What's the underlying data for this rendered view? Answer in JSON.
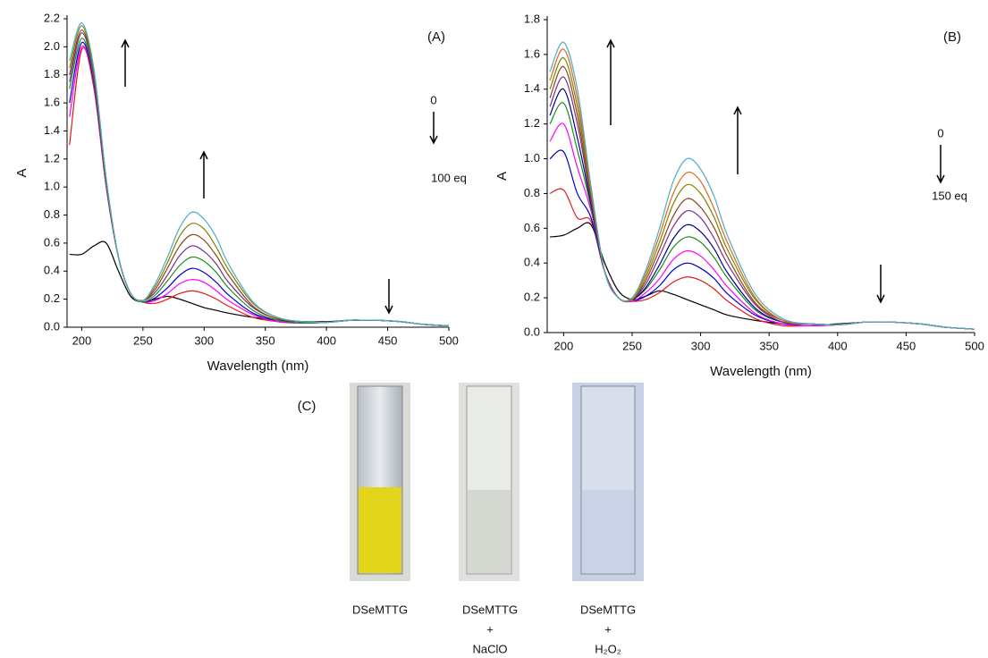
{
  "chart_data": [
    {
      "type": "line",
      "panel_label": "(A)",
      "xlabel": "Wavelength (nm)",
      "ylabel": "A",
      "annotation_start": "0",
      "annotation_end": "100 eq",
      "x": [
        190,
        200,
        210,
        220,
        230,
        240,
        250,
        260,
        270,
        280,
        290,
        300,
        310,
        320,
        340,
        360,
        380,
        400,
        420,
        430,
        440,
        460,
        480,
        500
      ],
      "xlim": [
        188,
        500
      ],
      "ylim": [
        0,
        2.2
      ],
      "xticks": [
        200,
        250,
        300,
        350,
        400,
        450,
        500
      ],
      "yticks": [
        {
          "value": 0,
          "label": "0.0"
        },
        0.2,
        0.4,
        0.6,
        0.8,
        {
          "value": 1,
          "label": "1.0"
        },
        1.2,
        1.4,
        1.6,
        1.8,
        {
          "value": 2,
          "label": "2.0"
        },
        2.2
      ],
      "series": [
        {
          "color": "#000000",
          "values": [
            0.52,
            0.52,
            0.58,
            0.6,
            0.4,
            0.22,
            0.18,
            0.2,
            0.22,
            0.2,
            0.17,
            0.14,
            0.12,
            0.1,
            0.07,
            0.05,
            0.04,
            0.04,
            0.05,
            0.05,
            0.05,
            0.04,
            0.02,
            0.01
          ]
        },
        {
          "color": "#e41a1c",
          "values": [
            1.3,
            1.98,
            1.7,
            1.0,
            0.5,
            0.24,
            0.18,
            0.17,
            0.2,
            0.24,
            0.26,
            0.24,
            0.2,
            0.15,
            0.07,
            0.04,
            0.03,
            0.035,
            0.05,
            0.05,
            0.05,
            0.04,
            0.02,
            0.01
          ]
        },
        {
          "color": "#ff00ff",
          "values": [
            1.5,
            2.0,
            1.72,
            1.0,
            0.5,
            0.24,
            0.18,
            0.19,
            0.24,
            0.31,
            0.34,
            0.32,
            0.26,
            0.19,
            0.09,
            0.04,
            0.03,
            0.035,
            0.05,
            0.05,
            0.05,
            0.04,
            0.02,
            0.01
          ]
        },
        {
          "color": "#0000cc",
          "values": [
            1.6,
            2.03,
            1.74,
            1.02,
            0.5,
            0.24,
            0.18,
            0.21,
            0.28,
            0.37,
            0.42,
            0.39,
            0.32,
            0.23,
            0.1,
            0.05,
            0.03,
            0.035,
            0.05,
            0.05,
            0.05,
            0.04,
            0.02,
            0.01
          ]
        },
        {
          "color": "#1e8c1e",
          "values": [
            1.7,
            2.06,
            1.76,
            1.02,
            0.5,
            0.24,
            0.18,
            0.23,
            0.33,
            0.44,
            0.5,
            0.47,
            0.39,
            0.28,
            0.12,
            0.05,
            0.03,
            0.035,
            0.05,
            0.05,
            0.05,
            0.04,
            0.02,
            0.01
          ]
        },
        {
          "color": "#7b2d8b",
          "values": [
            1.75,
            2.1,
            1.78,
            1.04,
            0.5,
            0.24,
            0.19,
            0.25,
            0.37,
            0.51,
            0.58,
            0.54,
            0.45,
            0.32,
            0.14,
            0.06,
            0.04,
            0.035,
            0.05,
            0.05,
            0.05,
            0.04,
            0.02,
            0.01
          ]
        },
        {
          "color": "#8b4513",
          "values": [
            1.8,
            2.12,
            1.8,
            1.04,
            0.5,
            0.24,
            0.19,
            0.27,
            0.42,
            0.58,
            0.66,
            0.62,
            0.51,
            0.37,
            0.15,
            0.06,
            0.04,
            0.035,
            0.05,
            0.05,
            0.05,
            0.04,
            0.02,
            0.01
          ]
        },
        {
          "color": "#808000",
          "values": [
            1.85,
            2.15,
            1.82,
            1.06,
            0.5,
            0.24,
            0.19,
            0.29,
            0.46,
            0.65,
            0.74,
            0.7,
            0.57,
            0.41,
            0.17,
            0.07,
            0.04,
            0.035,
            0.05,
            0.05,
            0.05,
            0.04,
            0.02,
            0.01
          ]
        },
        {
          "color": "#4bacc6",
          "values": [
            1.9,
            2.17,
            1.84,
            1.06,
            0.5,
            0.24,
            0.19,
            0.31,
            0.5,
            0.71,
            0.82,
            0.77,
            0.64,
            0.45,
            0.18,
            0.07,
            0.04,
            0.035,
            0.05,
            0.05,
            0.05,
            0.04,
            0.02,
            0.01
          ]
        }
      ]
    },
    {
      "type": "line",
      "panel_label": "(B)",
      "xlabel": "Wavelength (nm)",
      "ylabel": "A",
      "annotation_start": "0",
      "annotation_end": "150 eq",
      "x": [
        190,
        200,
        210,
        220,
        230,
        240,
        250,
        260,
        270,
        280,
        290,
        300,
        310,
        320,
        340,
        360,
        380,
        400,
        420,
        430,
        440,
        460,
        480,
        500
      ],
      "xlim": [
        188,
        500
      ],
      "ylim": [
        0,
        1.8
      ],
      "xticks": [
        200,
        250,
        300,
        350,
        400,
        450,
        500
      ],
      "yticks": [
        {
          "value": 0,
          "label": "0.0"
        },
        0.2,
        0.4,
        0.6,
        0.8,
        {
          "value": 1,
          "label": "1.0"
        },
        1.2,
        1.4,
        1.6,
        1.8
      ],
      "series": [
        {
          "color": "#000000",
          "values": [
            0.55,
            0.56,
            0.6,
            0.62,
            0.4,
            0.24,
            0.19,
            0.21,
            0.24,
            0.22,
            0.19,
            0.16,
            0.13,
            0.1,
            0.07,
            0.05,
            0.04,
            0.05,
            0.06,
            0.06,
            0.06,
            0.05,
            0.03,
            0.02
          ]
        },
        {
          "color": "#e41a1c",
          "values": [
            0.8,
            0.82,
            0.66,
            0.64,
            0.35,
            0.2,
            0.18,
            0.19,
            0.23,
            0.29,
            0.32,
            0.3,
            0.25,
            0.18,
            0.08,
            0.04,
            0.04,
            0.045,
            0.06,
            0.06,
            0.06,
            0.05,
            0.03,
            0.02
          ]
        },
        {
          "color": "#0000cc",
          "values": [
            1.0,
            1.04,
            0.8,
            0.66,
            0.35,
            0.2,
            0.18,
            0.21,
            0.27,
            0.36,
            0.4,
            0.37,
            0.31,
            0.22,
            0.1,
            0.05,
            0.04,
            0.045,
            0.06,
            0.06,
            0.06,
            0.05,
            0.03,
            0.02
          ]
        },
        {
          "color": "#ff00ff",
          "values": [
            1.1,
            1.2,
            0.95,
            0.7,
            0.35,
            0.2,
            0.18,
            0.23,
            0.31,
            0.42,
            0.47,
            0.44,
            0.36,
            0.26,
            0.11,
            0.05,
            0.04,
            0.045,
            0.06,
            0.06,
            0.06,
            0.05,
            0.03,
            0.02
          ]
        },
        {
          "color": "#1e8c1e",
          "values": [
            1.2,
            1.32,
            1.05,
            0.72,
            0.35,
            0.2,
            0.19,
            0.25,
            0.36,
            0.49,
            0.55,
            0.52,
            0.43,
            0.31,
            0.13,
            0.06,
            0.05,
            0.045,
            0.06,
            0.06,
            0.06,
            0.05,
            0.03,
            0.02
          ]
        },
        {
          "color": "#00008b",
          "values": [
            1.25,
            1.4,
            1.12,
            0.74,
            0.35,
            0.2,
            0.19,
            0.26,
            0.39,
            0.54,
            0.62,
            0.58,
            0.48,
            0.34,
            0.14,
            0.06,
            0.05,
            0.045,
            0.06,
            0.06,
            0.06,
            0.05,
            0.03,
            0.02
          ]
        },
        {
          "color": "#7b2d8b",
          "values": [
            1.3,
            1.47,
            1.2,
            0.76,
            0.35,
            0.2,
            0.19,
            0.28,
            0.44,
            0.61,
            0.7,
            0.66,
            0.54,
            0.39,
            0.16,
            0.06,
            0.05,
            0.045,
            0.06,
            0.06,
            0.06,
            0.05,
            0.03,
            0.02
          ]
        },
        {
          "color": "#8b4513",
          "values": [
            1.35,
            1.53,
            1.25,
            0.78,
            0.35,
            0.2,
            0.19,
            0.3,
            0.48,
            0.67,
            0.77,
            0.72,
            0.6,
            0.43,
            0.17,
            0.07,
            0.05,
            0.045,
            0.06,
            0.06,
            0.06,
            0.05,
            0.03,
            0.02
          ]
        },
        {
          "color": "#808000",
          "values": [
            1.4,
            1.58,
            1.3,
            0.8,
            0.35,
            0.2,
            0.19,
            0.32,
            0.52,
            0.74,
            0.85,
            0.8,
            0.66,
            0.47,
            0.19,
            0.07,
            0.05,
            0.045,
            0.06,
            0.06,
            0.06,
            0.05,
            0.03,
            0.02
          ]
        },
        {
          "color": "#d2691e",
          "values": [
            1.45,
            1.63,
            1.35,
            0.82,
            0.35,
            0.2,
            0.2,
            0.34,
            0.56,
            0.8,
            0.92,
            0.87,
            0.71,
            0.51,
            0.2,
            0.07,
            0.05,
            0.045,
            0.06,
            0.06,
            0.06,
            0.05,
            0.03,
            0.02
          ]
        },
        {
          "color": "#4bacc6",
          "values": [
            1.5,
            1.67,
            1.4,
            0.84,
            0.35,
            0.2,
            0.2,
            0.36,
            0.6,
            0.87,
            1.0,
            0.94,
            0.78,
            0.55,
            0.22,
            0.08,
            0.05,
            0.045,
            0.06,
            0.06,
            0.06,
            0.05,
            0.03,
            0.02
          ]
        }
      ]
    }
  ],
  "panel_c": {
    "label": "(C)",
    "samples": [
      {
        "lines": [
          "DSeMTTG"
        ]
      },
      {
        "lines": [
          "DSeMTTG",
          "+",
          "NaClO"
        ]
      },
      {
        "lines": [
          "DSeMTTG",
          "+",
          "H₂O₂"
        ]
      }
    ]
  }
}
